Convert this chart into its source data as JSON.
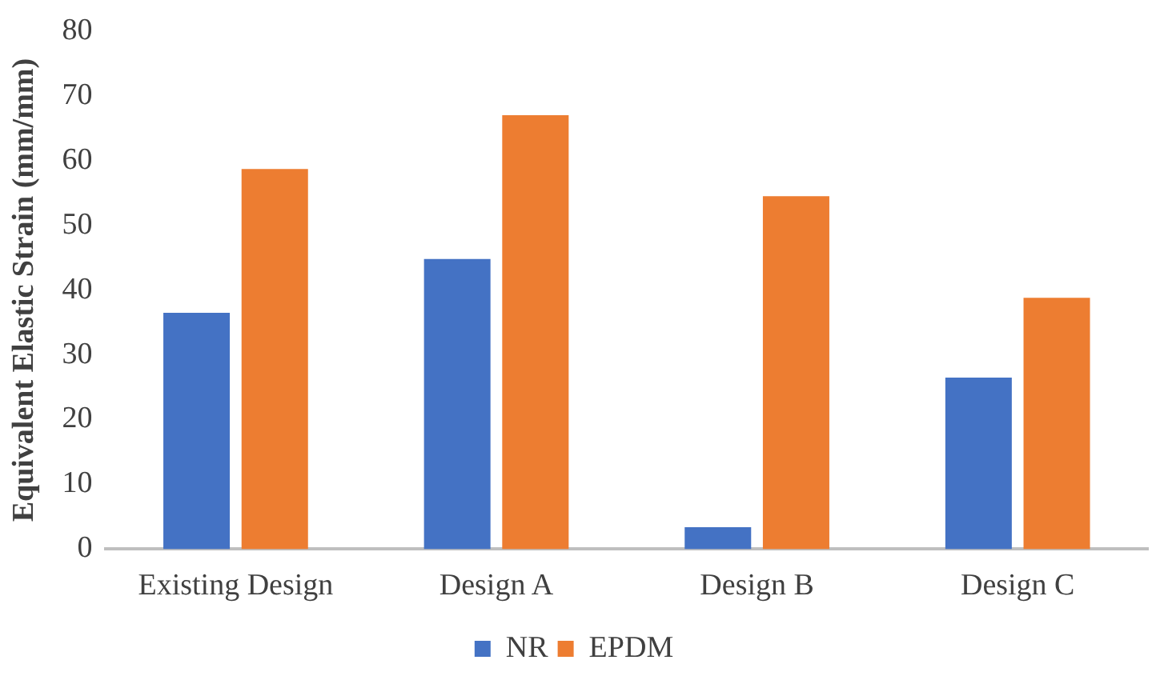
{
  "chart_data": {
    "type": "bar",
    "ylabel": "Equivalent Elastic Strain (mm/mm)",
    "categories": [
      "Existing Design",
      "Design A",
      "Design B",
      "Design C"
    ],
    "series": [
      {
        "name": "NR",
        "color": "#4472c4",
        "values": [
          36.5,
          44.8,
          3.4,
          26.5
        ]
      },
      {
        "name": "EPDM",
        "color": "#ed7d31",
        "values": [
          58.7,
          67.0,
          54.5,
          38.8
        ]
      }
    ],
    "ylim": [
      0,
      80
    ],
    "yticks": [
      0,
      10,
      20,
      30,
      40,
      50,
      60,
      70,
      80
    ],
    "grid": false,
    "legend": "bottom"
  }
}
